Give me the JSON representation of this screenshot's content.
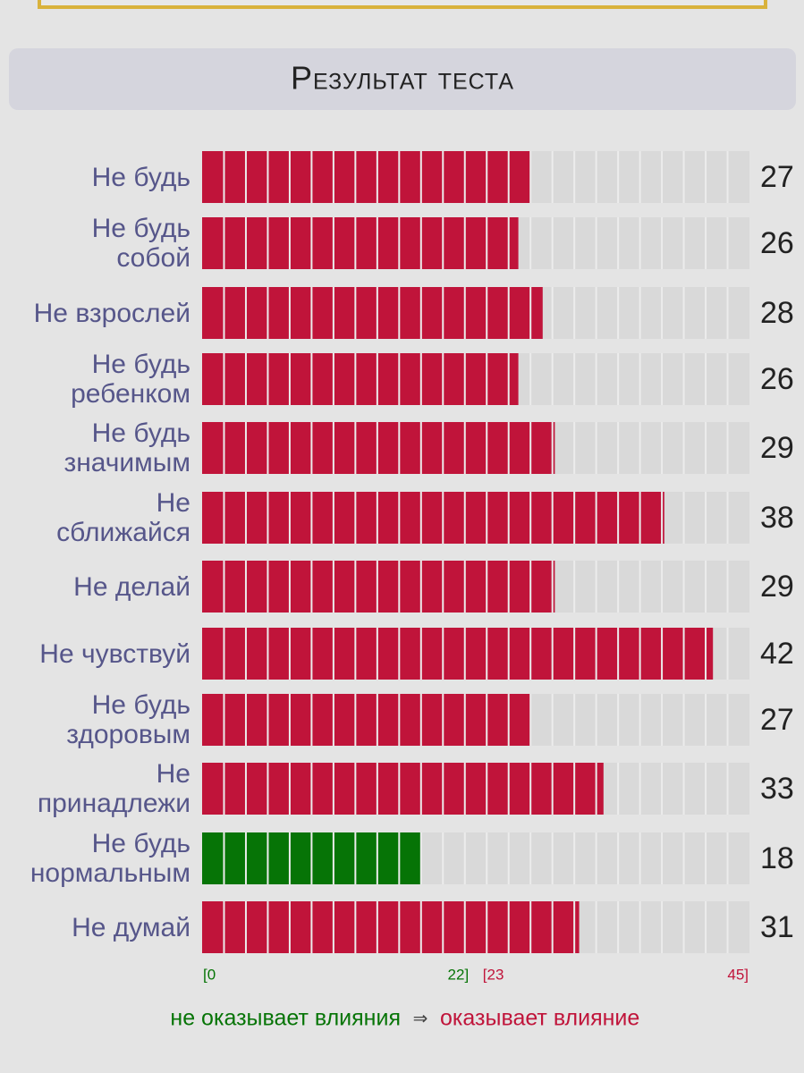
{
  "chart_data": {
    "type": "hbar",
    "title": "Результат теста",
    "categories": [
      "Не будь",
      "Не будь\nсобой",
      "Не взрослей",
      "Не будь\nребенком",
      "Не будь\nзначимым",
      "Не\nсближайся",
      "Не делай",
      "Не чувствуй",
      "Не будь\nздоровым",
      "Не\nпринадлежи",
      "Не будь\nнормальным",
      "Не думай"
    ],
    "values": [
      27,
      26,
      28,
      26,
      29,
      38,
      29,
      42,
      27,
      33,
      18,
      31
    ],
    "colors": [
      "#c0143a",
      "#c0143a",
      "#c0143a",
      "#c0143a",
      "#c0143a",
      "#c0143a",
      "#c0143a",
      "#c0143a",
      "#c0143a",
      "#c0143a",
      "#067406",
      "#c0143a"
    ],
    "xlim": [
      0,
      45
    ],
    "xticks": [
      {
        "value": 0,
        "label": "[0",
        "color": "#067406"
      },
      {
        "value": 22,
        "label": "22]",
        "color": "#067406"
      },
      {
        "value": 23,
        "label": "[23",
        "color": "#c0143a"
      },
      {
        "value": 45,
        "label": "45]",
        "color": "#c0143a"
      }
    ],
    "legend": [
      {
        "text": "не оказывает влияния",
        "color": "#067406"
      },
      {
        "text": "⇒",
        "color": "#444444"
      },
      {
        "text": "оказывает влияние",
        "color": "#c0143a"
      }
    ]
  }
}
